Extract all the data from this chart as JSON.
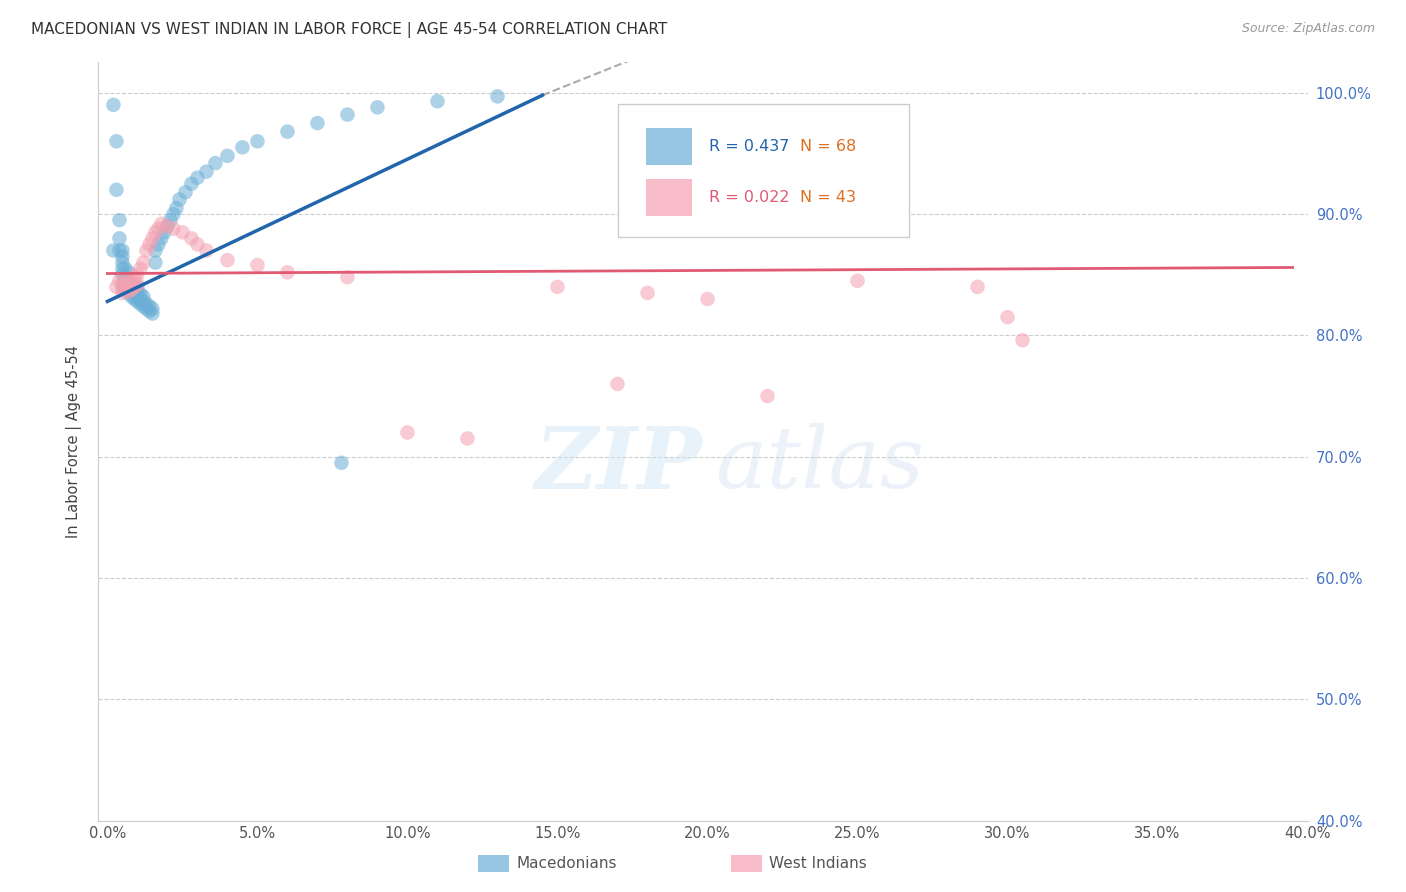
{
  "title": "MACEDONIAN VS WEST INDIAN IN LABOR FORCE | AGE 45-54 CORRELATION CHART",
  "source": "Source: ZipAtlas.com",
  "ylabel": "In Labor Force | Age 45-54",
  "xlim": [
    -0.003,
    0.4
  ],
  "ylim": [
    0.4,
    1.025
  ],
  "yticks": [
    0.4,
    0.5,
    0.6,
    0.7,
    0.8,
    0.9,
    1.0
  ],
  "ytick_labels": [
    "40.0%",
    "50.0%",
    "60.0%",
    "70.0%",
    "80.0%",
    "90.0%",
    "100.0%"
  ],
  "xticks": [
    0.0,
    0.05,
    0.1,
    0.15,
    0.2,
    0.25,
    0.3,
    0.35,
    0.4
  ],
  "xtick_labels": [
    "0.0%",
    "5.0%",
    "10.0%",
    "15.0%",
    "20.0%",
    "25.0%",
    "30.0%",
    "35.0%",
    "40.0%"
  ],
  "macedonian_R": 0.437,
  "macedonian_N": 68,
  "west_indian_R": 0.022,
  "west_indian_N": 43,
  "blue_color": "#6baed6",
  "pink_color": "#f4a0b0",
  "trend_blue": "#2166ac",
  "trend_pink": "#e05a74",
  "mac_x": [
    0.002,
    0.003,
    0.003,
    0.004,
    0.004,
    0.004,
    0.005,
    0.005,
    0.005,
    0.005,
    0.005,
    0.005,
    0.006,
    0.006,
    0.006,
    0.006,
    0.007,
    0.007,
    0.007,
    0.007,
    0.008,
    0.008,
    0.008,
    0.009,
    0.009,
    0.009,
    0.01,
    0.01,
    0.01,
    0.01,
    0.011,
    0.011,
    0.011,
    0.012,
    0.012,
    0.012,
    0.013,
    0.013,
    0.014,
    0.014,
    0.015,
    0.015,
    0.016,
    0.016,
    0.017,
    0.018,
    0.019,
    0.02,
    0.021,
    0.022,
    0.023,
    0.024,
    0.026,
    0.028,
    0.03,
    0.033,
    0.036,
    0.04,
    0.045,
    0.05,
    0.06,
    0.07,
    0.08,
    0.09,
    0.11,
    0.13,
    0.078,
    0.002
  ],
  "mac_y": [
    0.87,
    0.92,
    0.96,
    0.87,
    0.88,
    0.895,
    0.84,
    0.85,
    0.855,
    0.86,
    0.865,
    0.87,
    0.838,
    0.842,
    0.848,
    0.855,
    0.835,
    0.84,
    0.845,
    0.852,
    0.832,
    0.836,
    0.842,
    0.83,
    0.835,
    0.84,
    0.828,
    0.832,
    0.836,
    0.84,
    0.826,
    0.83,
    0.834,
    0.824,
    0.828,
    0.832,
    0.822,
    0.826,
    0.82,
    0.824,
    0.818,
    0.822,
    0.86,
    0.87,
    0.875,
    0.88,
    0.885,
    0.89,
    0.895,
    0.9,
    0.905,
    0.912,
    0.918,
    0.925,
    0.93,
    0.935,
    0.942,
    0.948,
    0.955,
    0.96,
    0.968,
    0.975,
    0.982,
    0.988,
    0.993,
    0.997,
    0.695,
    0.99
  ],
  "wi_x": [
    0.003,
    0.004,
    0.005,
    0.005,
    0.006,
    0.006,
    0.007,
    0.007,
    0.008,
    0.008,
    0.009,
    0.009,
    0.01,
    0.01,
    0.011,
    0.012,
    0.013,
    0.014,
    0.015,
    0.016,
    0.017,
    0.018,
    0.02,
    0.022,
    0.025,
    0.028,
    0.03,
    0.033,
    0.04,
    0.05,
    0.06,
    0.08,
    0.1,
    0.12,
    0.15,
    0.18,
    0.2,
    0.25,
    0.29,
    0.3,
    0.305,
    0.22,
    0.17
  ],
  "wi_y": [
    0.84,
    0.845,
    0.835,
    0.842,
    0.838,
    0.845,
    0.836,
    0.842,
    0.838,
    0.845,
    0.84,
    0.848,
    0.842,
    0.85,
    0.855,
    0.86,
    0.87,
    0.875,
    0.88,
    0.885,
    0.888,
    0.892,
    0.89,
    0.888,
    0.885,
    0.88,
    0.875,
    0.87,
    0.862,
    0.858,
    0.852,
    0.848,
    0.72,
    0.715,
    0.84,
    0.835,
    0.83,
    0.845,
    0.84,
    0.815,
    0.796,
    0.75,
    0.76
  ],
  "blue_trend_x": [
    0.0,
    0.145
  ],
  "blue_trend_y": [
    0.828,
    0.998
  ],
  "pink_trend_x": [
    0.0,
    0.395
  ],
  "pink_trend_y": [
    0.851,
    0.856
  ]
}
